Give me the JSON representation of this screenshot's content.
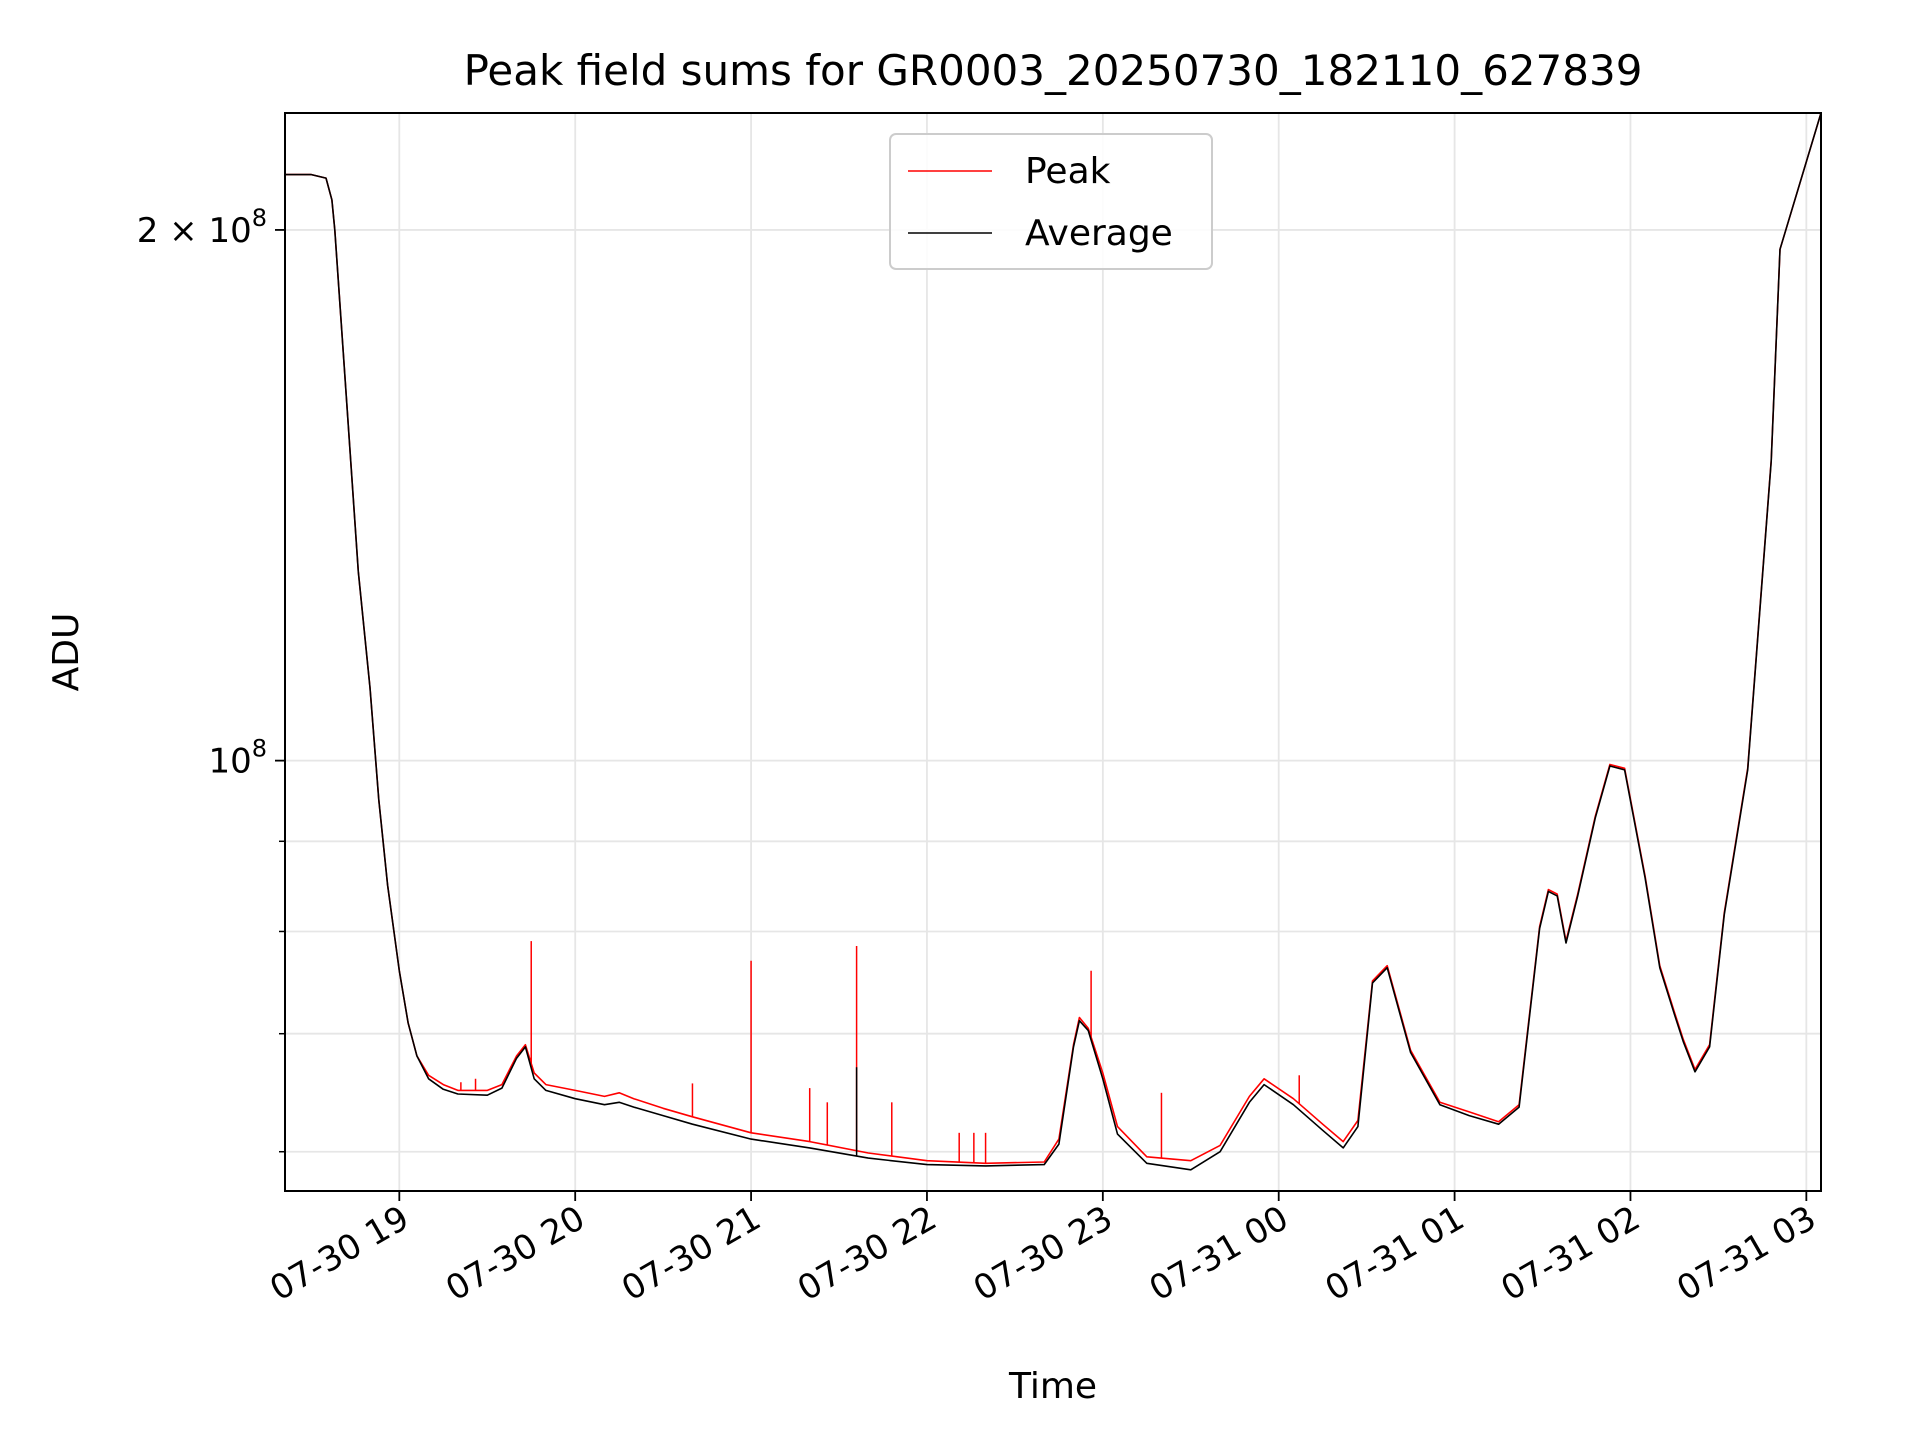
{
  "chart_data": {
    "type": "line",
    "title": "Peak field sums for GR0003_20250730_182110_627839",
    "xlabel": "Time",
    "ylabel": "ADU",
    "x_axis_kind": "datetime",
    "xlim": [
      "2025-07-30 18:21",
      "2025-07-31 03:05"
    ],
    "ylim": [
      57000000,
      233000000
    ],
    "yscale": "log",
    "grid": true,
    "legend_position": "upper center",
    "x_tick_labels": [
      "07-30 19",
      "07-30 20",
      "07-30 21",
      "07-30 22",
      "07-30 23",
      "07-31 00",
      "07-31 01",
      "07-31 02",
      "07-31 03"
    ],
    "x_ticks": [
      "2025-07-30 19:00",
      "2025-07-30 20:00",
      "2025-07-30 21:00",
      "2025-07-30 22:00",
      "2025-07-30 23:00",
      "2025-07-31 00:00",
      "2025-07-31 01:00",
      "2025-07-31 02:00",
      "2025-07-31 03:00"
    ],
    "y_major_ticks": [
      {
        "value": 100000000,
        "label_main": "10",
        "label_sup": "8"
      },
      {
        "value": 200000000,
        "label_main": "2 × 10",
        "label_sup": "8"
      }
    ],
    "y_minor_ticks": [
      60000000,
      70000000,
      80000000,
      90000000
    ],
    "series": [
      {
        "name": "Peak",
        "color": "#ff0000",
        "x": [
          "2025-07-30 18:21",
          "2025-07-30 18:30",
          "2025-07-30 18:35",
          "2025-07-30 18:37",
          "2025-07-30 18:38",
          "2025-07-30 18:42",
          "2025-07-30 18:46",
          "2025-07-30 18:50",
          "2025-07-30 18:53",
          "2025-07-30 18:56",
          "2025-07-30 19:00",
          "2025-07-30 19:03",
          "2025-07-30 19:06",
          "2025-07-30 19:10",
          "2025-07-30 19:15",
          "2025-07-30 19:20",
          "2025-07-30 19:30",
          "2025-07-30 19:35",
          "2025-07-30 19:40",
          "2025-07-30 19:43",
          "2025-07-30 19:46",
          "2025-07-30 19:50",
          "2025-07-30 20:00",
          "2025-07-30 20:10",
          "2025-07-30 20:15",
          "2025-07-30 20:20",
          "2025-07-30 20:30",
          "2025-07-30 20:40",
          "2025-07-30 21:00",
          "2025-07-30 21:20",
          "2025-07-30 21:40",
          "2025-07-30 22:00",
          "2025-07-30 22:20",
          "2025-07-30 22:40",
          "2025-07-30 22:45",
          "2025-07-30 22:50",
          "2025-07-30 22:52",
          "2025-07-30 22:55",
          "2025-07-30 23:00",
          "2025-07-30 23:05",
          "2025-07-30 23:15",
          "2025-07-30 23:30",
          "2025-07-30 23:40",
          "2025-07-30 23:50",
          "2025-07-30 23:55",
          "2025-07-31 00:05",
          "2025-07-31 00:15",
          "2025-07-31 00:22",
          "2025-07-31 00:27",
          "2025-07-31 00:32",
          "2025-07-31 00:37",
          "2025-07-31 00:45",
          "2025-07-31 00:55",
          "2025-07-31 01:05",
          "2025-07-31 01:15",
          "2025-07-31 01:22",
          "2025-07-31 01:29",
          "2025-07-31 01:32",
          "2025-07-31 01:35",
          "2025-07-31 01:38",
          "2025-07-31 01:42",
          "2025-07-31 01:48",
          "2025-07-31 01:53",
          "2025-07-31 01:58",
          "2025-07-31 02:05",
          "2025-07-31 02:10",
          "2025-07-31 02:15",
          "2025-07-31 02:18",
          "2025-07-31 02:22",
          "2025-07-31 02:27",
          "2025-07-31 02:32",
          "2025-07-31 02:40",
          "2025-07-31 02:48",
          "2025-07-31 02:51",
          "2025-07-31 03:05"
        ],
        "y": [
          215000000,
          215000000,
          214000000,
          208000000,
          200000000,
          160000000,
          128000000,
          110000000,
          95000000,
          85000000,
          76000000,
          71000000,
          68000000,
          66300000,
          65500000,
          65000000,
          65000000,
          65500000,
          68000000,
          69000000,
          66500000,
          65500000,
          65000000,
          64500000,
          64800000,
          64300000,
          63500000,
          62800000,
          61500000,
          60800000,
          59900000,
          59300000,
          59100000,
          59200000,
          61000000,
          69000000,
          71500000,
          70500000,
          66500000,
          62000000,
          59600000,
          59300000,
          60500000,
          64500000,
          66000000,
          64300000,
          62200000,
          60800000,
          62500000,
          75000000,
          76500000,
          68500000,
          64000000,
          63200000,
          62400000,
          63800000,
          80500000,
          84500000,
          84000000,
          79000000,
          84000000,
          93000000,
          99500000,
          99000000,
          86000000,
          76500000,
          72000000,
          69500000,
          66800000,
          69000000,
          82000000,
          99000000,
          148000000,
          195000000,
          233000000
        ]
      },
      {
        "name": "Average",
        "color": "#000000",
        "x": [
          "2025-07-30 18:21",
          "2025-07-30 18:30",
          "2025-07-30 18:35",
          "2025-07-30 18:37",
          "2025-07-30 18:38",
          "2025-07-30 18:42",
          "2025-07-30 18:46",
          "2025-07-30 18:50",
          "2025-07-30 18:53",
          "2025-07-30 18:56",
          "2025-07-30 19:00",
          "2025-07-30 19:03",
          "2025-07-30 19:06",
          "2025-07-30 19:10",
          "2025-07-30 19:15",
          "2025-07-30 19:20",
          "2025-07-30 19:30",
          "2025-07-30 19:35",
          "2025-07-30 19:40",
          "2025-07-30 19:43",
          "2025-07-30 19:46",
          "2025-07-30 19:50",
          "2025-07-30 20:00",
          "2025-07-30 20:10",
          "2025-07-30 20:15",
          "2025-07-30 20:20",
          "2025-07-30 20:30",
          "2025-07-30 20:40",
          "2025-07-30 21:00",
          "2025-07-30 21:20",
          "2025-07-30 21:40",
          "2025-07-30 22:00",
          "2025-07-30 22:20",
          "2025-07-30 22:40",
          "2025-07-30 22:45",
          "2025-07-30 22:50",
          "2025-07-30 22:52",
          "2025-07-30 22:55",
          "2025-07-30 23:00",
          "2025-07-30 23:05",
          "2025-07-30 23:15",
          "2025-07-30 23:30",
          "2025-07-30 23:40",
          "2025-07-30 23:50",
          "2025-07-30 23:55",
          "2025-07-31 00:05",
          "2025-07-31 00:15",
          "2025-07-31 00:22",
          "2025-07-31 00:27",
          "2025-07-31 00:32",
          "2025-07-31 00:37",
          "2025-07-31 00:45",
          "2025-07-31 00:55",
          "2025-07-31 01:05",
          "2025-07-31 01:15",
          "2025-07-31 01:22",
          "2025-07-31 01:29",
          "2025-07-31 01:32",
          "2025-07-31 01:35",
          "2025-07-31 01:38",
          "2025-07-31 01:42",
          "2025-07-31 01:48",
          "2025-07-31 01:53",
          "2025-07-31 01:58",
          "2025-07-31 02:05",
          "2025-07-31 02:10",
          "2025-07-31 02:15",
          "2025-07-31 02:18",
          "2025-07-31 02:22",
          "2025-07-31 02:27",
          "2025-07-31 02:32",
          "2025-07-31 02:40",
          "2025-07-31 02:48",
          "2025-07-31 02:51",
          "2025-07-31 03:05"
        ],
        "y": [
          215000000,
          215000000,
          214000000,
          208000000,
          200000000,
          160000000,
          128000000,
          110000000,
          95000000,
          85000000,
          76000000,
          71000000,
          68000000,
          66000000,
          65100000,
          64700000,
          64600000,
          65200000,
          67800000,
          68800000,
          66000000,
          65000000,
          64300000,
          63800000,
          64000000,
          63600000,
          62900000,
          62200000,
          61000000,
          60300000,
          59500000,
          59000000,
          58900000,
          59000000,
          60600000,
          68800000,
          71200000,
          70300000,
          66000000,
          61400000,
          59100000,
          58600000,
          60000000,
          64000000,
          65500000,
          63800000,
          61700000,
          60300000,
          62000000,
          74800000,
          76300000,
          68300000,
          63800000,
          62900000,
          62200000,
          63600000,
          80300000,
          84300000,
          83800000,
          78800000,
          83800000,
          92800000,
          99300000,
          98800000,
          85800000,
          76300000,
          71800000,
          69300000,
          66600000,
          68800000,
          81800000,
          98800000,
          147800000,
          195000000,
          233000000
        ]
      }
    ],
    "peak_spikes": [
      {
        "x": "2025-07-30 19:21",
        "y": 65700000
      },
      {
        "x": "2025-07-30 19:26",
        "y": 66000000
      },
      {
        "x": "2025-07-30 19:45",
        "y": 79000000
      },
      {
        "x": "2025-07-30 20:40",
        "y": 65600000
      },
      {
        "x": "2025-07-30 21:00",
        "y": 77000000
      },
      {
        "x": "2025-07-30 21:20",
        "y": 65200000
      },
      {
        "x": "2025-07-30 21:26",
        "y": 64000000
      },
      {
        "x": "2025-07-30 21:36",
        "y": 78500000
      },
      {
        "x": "2025-07-30 21:48",
        "y": 64000000
      },
      {
        "x": "2025-07-30 22:11",
        "y": 61500000
      },
      {
        "x": "2025-07-30 22:16",
        "y": 61500000
      },
      {
        "x": "2025-07-30 22:20",
        "y": 61500000
      },
      {
        "x": "2025-07-30 22:56",
        "y": 76000000
      },
      {
        "x": "2025-07-30 23:20",
        "y": 64800000
      },
      {
        "x": "2025-07-31 00:07",
        "y": 66300000
      }
    ],
    "average_spikes": [
      {
        "x": "2025-07-30 21:36",
        "y": 67000000
      }
    ]
  }
}
